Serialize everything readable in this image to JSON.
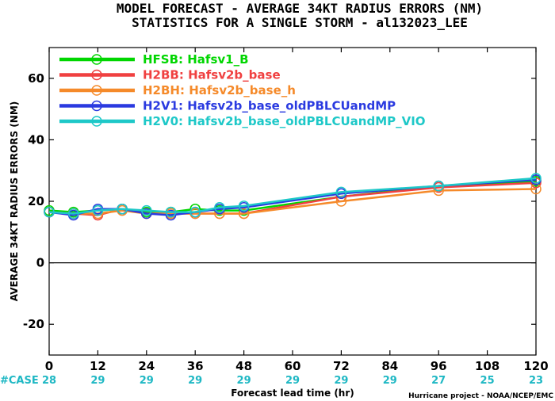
{
  "title_line1": "MODEL FORECAST - AVERAGE 34KT RADIUS ERRORS (NM)",
  "title_line2": "STATISTICS FOR A SINGLE STORM - al132023_LEE",
  "credit": "Hurricane project - NOAA/NCEP/EMC",
  "case_label": "#CASE",
  "colors": {
    "case": "#1fb8c4",
    "zero_line": "#000000"
  },
  "chart_data": {
    "type": "line",
    "xlabel": "Forecast lead time (hr)",
    "ylabel": "AVERAGE 34KT RADIUS ERRORS (NM)",
    "xlim": [
      0,
      120
    ],
    "ylim": [
      -30,
      70
    ],
    "x_ticks": [
      0,
      12,
      24,
      36,
      48,
      60,
      72,
      84,
      96,
      108,
      120
    ],
    "y_ticks": [
      -20,
      0,
      20,
      40,
      60
    ],
    "case_counts": [
      {
        "x": 0,
        "label": "28"
      },
      {
        "x": 12,
        "label": "29"
      },
      {
        "x": 24,
        "label": "29"
      },
      {
        "x": 36,
        "label": "29"
      },
      {
        "x": 48,
        "label": "29"
      },
      {
        "x": 60,
        "label": "29"
      },
      {
        "x": 72,
        "label": "29"
      },
      {
        "x": 84,
        "label": "29"
      },
      {
        "x": 96,
        "label": "27"
      },
      {
        "x": 108,
        "label": "25"
      },
      {
        "x": 120,
        "label": "23"
      }
    ],
    "legend_position": "top-left",
    "series": [
      {
        "name": "HFSB: Hafsv1_B",
        "color": "#00d600",
        "x": [
          0,
          6,
          12,
          18,
          24,
          30,
          36,
          42,
          48,
          72,
          96,
          120
        ],
        "y": [
          17.0,
          16.5,
          17.0,
          17.5,
          16.5,
          16.5,
          17.5,
          17.0,
          17.0,
          21.5,
          25.0,
          26.5
        ]
      },
      {
        "name": "H2BB: Hafsv2b_base",
        "color": "#f04040",
        "x": [
          0,
          6,
          12,
          18,
          24,
          30,
          36,
          42,
          48,
          72,
          96,
          120
        ],
        "y": [
          16.5,
          16.0,
          15.5,
          17.5,
          16.0,
          16.0,
          16.0,
          16.0,
          16.0,
          21.5,
          24.5,
          26.0
        ]
      },
      {
        "name": "H2BH: Hafsv2b_base_h",
        "color": "#f58a2a",
        "x": [
          0,
          6,
          12,
          18,
          24,
          30,
          36,
          42,
          48,
          72,
          96,
          120
        ],
        "y": [
          16.5,
          16.0,
          16.0,
          17.0,
          16.0,
          16.0,
          16.0,
          16.0,
          16.0,
          20.0,
          23.5,
          24.0
        ]
      },
      {
        "name": "H2V1: Hafsv2b_base_oldPBLCUandMP",
        "color": "#2a3ae0",
        "x": [
          0,
          6,
          12,
          18,
          24,
          30,
          36,
          42,
          48,
          72,
          96,
          120
        ],
        "y": [
          16.5,
          15.5,
          17.5,
          17.5,
          16.0,
          15.5,
          16.5,
          17.5,
          18.0,
          22.5,
          25.0,
          27.0
        ]
      },
      {
        "name": "H2V0: Hafsv2b_base_oldPBLCUandMP_VIO",
        "color": "#1ec8c8",
        "x": [
          0,
          6,
          12,
          18,
          24,
          30,
          36,
          42,
          48,
          72,
          96,
          120
        ],
        "y": [
          16.5,
          16.0,
          17.0,
          17.5,
          17.0,
          16.5,
          16.5,
          18.0,
          18.5,
          23.0,
          25.0,
          27.5
        ]
      }
    ]
  }
}
